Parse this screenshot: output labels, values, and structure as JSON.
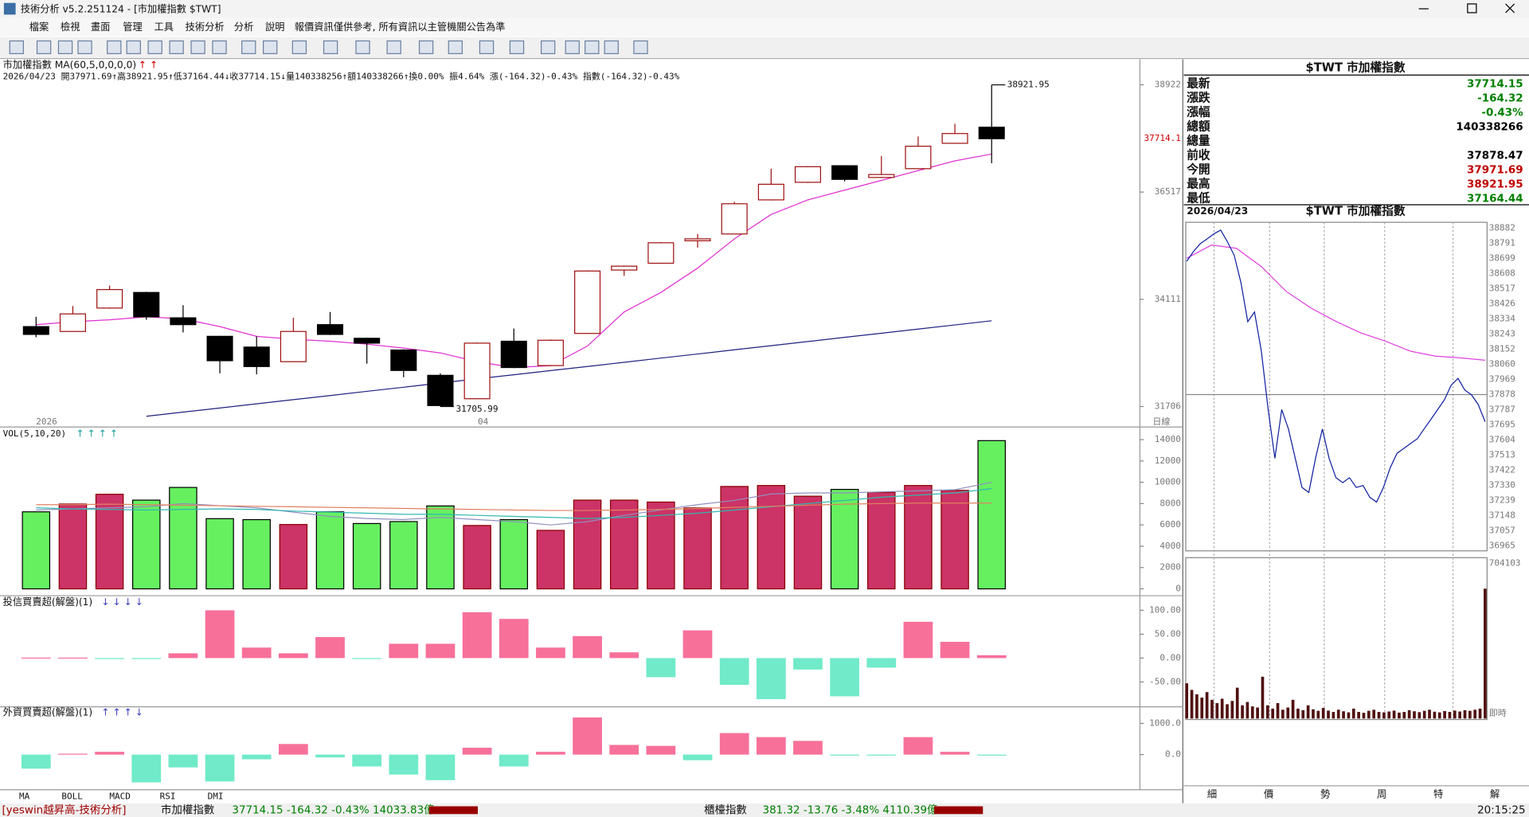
{
  "window": {
    "title": "技術分析 v5.2.251124 - [市加權指數 $TWT]"
  },
  "menu": [
    "檔案",
    "檢視",
    "畫面",
    "管理",
    "工具",
    "技術分析",
    "分析",
    "說明"
  ],
  "notice": "報價資訊僅供參考, 所有資訊以主管機關公告為準",
  "main": {
    "title": "市加權指數 MA(60,5,0,0,0,0)",
    "arrows": "↑ ↑",
    "info": "2026/04/23 開37971.69↑高38921.95↑低37164.44↓收37714.15↓量140338256↑額140338266↑換0.00% 振4.64% 漲(-164.32)-0.43% 指數(-164.32)-0.43%",
    "candles": {
      "open": [
        33499,
        33390,
        33915,
        34265,
        33696,
        33281,
        33040,
        32712,
        33543,
        33237,
        32974,
        32406,
        31881,
        33171,
        32625,
        33346,
        34768,
        34921,
        35424,
        35577,
        36342,
        36736,
        37108,
        36845,
        37042,
        37611,
        37971.69
      ],
      "high": [
        33718,
        33959,
        34418,
        34280,
        33980,
        33290,
        33281,
        33696,
        33827,
        33250,
        32990,
        32450,
        33140,
        33456,
        33210,
        34760,
        34870,
        35395,
        35577,
        36299,
        37042,
        37100,
        37120,
        37327,
        37764,
        38048,
        38921.95
      ],
      "low": [
        33259,
        33380,
        33900,
        33652,
        33368,
        32450,
        32428,
        32700,
        33310,
        32668,
        32362,
        31705.99,
        31870,
        32570,
        32610,
        33340,
        34637,
        34910,
        35271,
        35565,
        36330,
        36720,
        36758,
        36830,
        37030,
        37600,
        37164.44
      ],
      "close": [
        33324,
        33784,
        34330,
        33718,
        33543,
        32734,
        32603,
        33390,
        33324,
        33128,
        32515,
        31728,
        33128,
        32581,
        33193,
        34746,
        34855,
        35380,
        35468,
        36255,
        36692,
        37086,
        36802,
        36911,
        37545,
        37830,
        37714.15
      ]
    },
    "up_color": "#a01010",
    "down_color": "#000000",
    "ma5": {
      "color": "#e030d0",
      "values": [
        33543,
        33609,
        33652,
        33718,
        33674,
        33499,
        33281,
        33215,
        33171,
        33106,
        33018,
        32909,
        32712,
        32581,
        32625,
        33062,
        33827,
        34265,
        34812,
        35468,
        36014,
        36342,
        36561,
        36780,
        36999,
        37217,
        37370
      ]
    },
    "ma60": {
      "color": "#202080",
      "values": [
        null,
        null,
        null,
        31487,
        31580,
        31673,
        31767,
        31860,
        31953,
        32046,
        32139,
        32233,
        32326,
        32419,
        32512,
        32605,
        32698,
        32792,
        32885,
        32978,
        33071,
        33164,
        33258,
        33351,
        33444,
        33537,
        33631
      ]
    },
    "ylim": [
      31465,
      39382
    ],
    "yticks": [
      31706,
      34111,
      36517,
      38922
    ],
    "last_tick": {
      "value": 37714.15,
      "label": "37714.1"
    },
    "x_labels": [
      "2026",
      "04"
    ],
    "period": "日線"
  },
  "volume": {
    "title": "VOL(5,10,20)",
    "arrows": "↑ ↑ ↑ ↑",
    "values": [
      7228,
      7960,
      8875,
      8326,
      9515,
      6587,
      6496,
      6038,
      7228,
      6130,
      6313,
      7777,
      5947,
      6496,
      5489,
      8326,
      8326,
      8143,
      7594,
      9607,
      9698,
      8692,
      9332,
      9058,
      9698,
      9241,
      13907
    ],
    "up_color": "#cc3366",
    "down_color": "#66f060",
    "ma": [
      {
        "color": "#9090c0",
        "values": [
          7400,
          7500,
          7600,
          7700,
          8000,
          7800,
          7600,
          7200,
          6800,
          6600,
          6500,
          6700,
          6500,
          6300,
          6000,
          6300,
          6900,
          7400,
          7900,
          8300,
          8900,
          9000,
          9000,
          9100,
          9200,
          9300,
          10000
        ]
      },
      {
        "color": "#30b8b0",
        "values": [
          7600,
          7500,
          7450,
          7400,
          7450,
          7500,
          7450,
          7300,
          7200,
          7100,
          7000,
          7000,
          6900,
          6800,
          6700,
          6600,
          6700,
          6900,
          7100,
          7400,
          7700,
          8000,
          8300,
          8600,
          8800,
          9000,
          9400
        ]
      },
      {
        "color": "#e08060",
        "values": [
          7900,
          7900,
          7950,
          7900,
          7850,
          7800,
          7750,
          7700,
          7650,
          7600,
          7550,
          7500,
          7450,
          7400,
          7350,
          7350,
          7400,
          7450,
          7550,
          7650,
          7750,
          7850,
          7950,
          8000,
          8050,
          8050,
          8050
        ]
      }
    ],
    "ylim": [
      0,
      15000
    ],
    "yticks": [
      0,
      2000,
      4000,
      6000,
      8000,
      10000,
      12000,
      14000
    ]
  },
  "trust": {
    "title": "投信買賣超(解盤)(1)",
    "arrows": "↓ ↓ ↓ ↓",
    "values": [
      1,
      1,
      -1,
      -1,
      10,
      100,
      22,
      10,
      44,
      -1,
      30,
      30,
      96,
      82,
      22,
      46,
      12,
      -40,
      58,
      -56,
      -86,
      -24,
      -80,
      -20,
      76,
      34,
      6
    ],
    "pos_color": "#f7709a",
    "neg_color": "#70eac8",
    "ylim": [
      -100,
      126.5
    ],
    "yticks": [
      {
        "value": 100,
        "label": "100.00"
      },
      {
        "value": 50,
        "label": "50.00"
      },
      {
        "value": 0,
        "label": "0.00"
      },
      {
        "value": -50,
        "label": "-50.00"
      }
    ]
  },
  "foreign": {
    "title": "外資買賣超(解盤)(1)",
    "arrows": "↑ ↑ ↑ ↓",
    "values": [
      -450,
      30,
      90,
      -890,
      -410,
      -860,
      -150,
      340,
      -90,
      -380,
      -640,
      -820,
      220,
      -380,
      90,
      1190,
      310,
      280,
      -180,
      690,
      560,
      440,
      -30,
      -30,
      560,
      90,
      -30
    ],
    "pos_color": "#f7709a",
    "neg_color": "#70eac8",
    "ylim": [
      -1125,
      1469
    ],
    "yticks": [
      {
        "value": 1000,
        "label": "1000.0"
      },
      {
        "value": 0,
        "label": "0.0"
      }
    ]
  },
  "indicator_tabs": [
    "MA",
    "BOLL",
    "MACD",
    "RSI",
    "DMI"
  ],
  "quote": {
    "title": "$TWT 市加權指數",
    "rows": [
      {
        "label": "最新",
        "value": 37714.15,
        "color": "#008000"
      },
      {
        "label": "漲跌",
        "value": -164.32,
        "color": "#008000"
      },
      {
        "label": "漲幅",
        "value": {
          "value": -0.43,
          "label": "-0.43%"
        },
        "color": "#008000"
      },
      {
        "label": "總額",
        "value": 140338266,
        "color": "#000000"
      },
      {
        "label": "總量"
      },
      {
        "label": "前收",
        "value": 37878.47,
        "color": "#000000"
      },
      {
        "label": "今開",
        "value": 37971.69,
        "color": "#c00000"
      },
      {
        "label": "最高",
        "value": 38921.95,
        "color": "#c00000"
      },
      {
        "label": "最低",
        "value": 37164.44,
        "color": "#008000"
      }
    ]
  },
  "intraday": {
    "date": "2026/04/23",
    "title": "$TWT 市加權指數",
    "price": {
      "color": "#1020a0",
      "values": [
        38682,
        38741,
        38788,
        38817,
        38847,
        38870,
        38800,
        38717,
        38553,
        38318,
        38376,
        38141,
        37788,
        37494,
        37788,
        37671,
        37494,
        37318,
        37288,
        37494,
        37671,
        37494,
        37377,
        37347,
        37377,
        37318,
        37330,
        37259,
        37230,
        37318,
        37436,
        37524,
        37553,
        37583,
        37612,
        37671,
        37729,
        37788,
        37847,
        37935,
        37976,
        37906,
        37876,
        37817,
        37714
      ]
    },
    "average": {
      "color": "#e040e0",
      "values": [
        38700,
        38780,
        38760,
        38650,
        38500,
        38400,
        38320,
        38250,
        38200,
        38140,
        38110,
        38100,
        38085
      ]
    },
    "ylim": [
      36936,
      38917
    ],
    "yticks": [
      38882,
      38791,
      38699,
      38608,
      38517,
      38426,
      38334,
      38243,
      38152,
      38060,
      37969,
      37878,
      37787,
      37695,
      37604,
      37513,
      37422,
      37330,
      37239,
      37148,
      37057,
      36965
    ],
    "volume": {
      "color": "#501010",
      "values": [
        160000,
        130000,
        110000,
        95000,
        120000,
        85000,
        70000,
        90000,
        65000,
        80000,
        140000,
        60000,
        75000,
        55000,
        50000,
        190000,
        60000,
        45000,
        70000,
        40000,
        50000,
        85000,
        45000,
        38000,
        60000,
        42000,
        35000,
        48000,
        36000,
        30000,
        40000,
        33000,
        28000,
        45000,
        30000,
        26000,
        35000,
        40000,
        30000,
        28000,
        32000,
        36000,
        27000,
        30000,
        38000,
        33000,
        29000,
        35000,
        40000,
        31000,
        28000,
        34000,
        30000,
        36000,
        32000,
        38000,
        35000,
        40000,
        45000,
        590000
      ],
      "ylim": [
        0,
        704103
      ],
      "yticks": [
        704103
      ]
    },
    "realtime": "即時"
  },
  "view_tabs": [
    "細",
    "價",
    "勢",
    "周",
    "特",
    "解"
  ],
  "status": {
    "app": "[yeswin越昇高-技術分析]",
    "index1": "市加權指數",
    "index1_quote": "37714.15 -164.32 -0.43% 14033.83億",
    "index2": "櫃檯指數",
    "index2_quote": "381.32 -13.76 -3.48% 4110.39億",
    "time": "20:15:25"
  }
}
